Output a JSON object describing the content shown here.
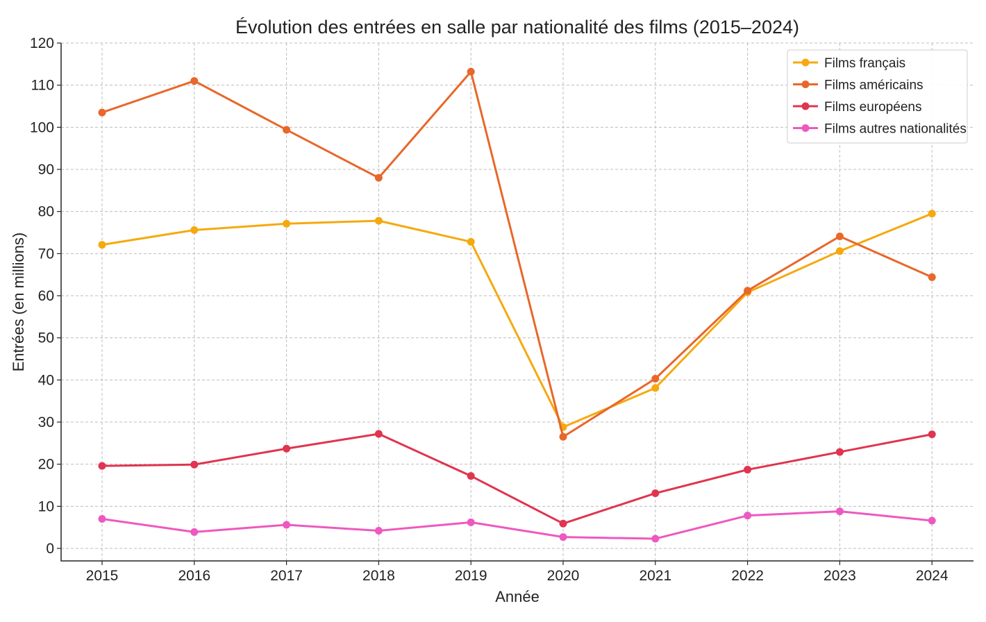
{
  "chart_data": {
    "type": "line",
    "title": "Évolution des entrées en salle par nationalité des films (2015–2024)",
    "xlabel": "Année",
    "ylabel": "Entrées (en millions)",
    "x": [
      2015,
      2016,
      2017,
      2018,
      2019,
      2020,
      2021,
      2022,
      2023,
      2024
    ],
    "ylim": [
      0,
      120
    ],
    "yticks": [
      0,
      10,
      20,
      30,
      40,
      50,
      60,
      70,
      80,
      90,
      100,
      110,
      120
    ],
    "grid": true,
    "legend_position": "top-right",
    "series": [
      {
        "name": "Films français",
        "color": "#f5a90f",
        "values": [
          72.1,
          75.6,
          77.1,
          77.8,
          72.8,
          28.8,
          38.1,
          60.8,
          70.6,
          79.5
        ]
      },
      {
        "name": "Films américains",
        "color": "#e8672a",
        "values": [
          103.5,
          111.0,
          99.4,
          88.0,
          113.2,
          26.5,
          40.3,
          61.2,
          74.1,
          64.4
        ]
      },
      {
        "name": "Films européens",
        "color": "#e0344f",
        "values": [
          19.6,
          19.9,
          23.7,
          27.2,
          17.2,
          5.9,
          13.1,
          18.7,
          22.9,
          27.1
        ]
      },
      {
        "name": "Films autres nationalités",
        "color": "#ee58c0",
        "values": [
          7.0,
          3.9,
          5.6,
          4.2,
          6.2,
          2.7,
          2.3,
          7.8,
          8.8,
          6.6
        ]
      }
    ]
  }
}
